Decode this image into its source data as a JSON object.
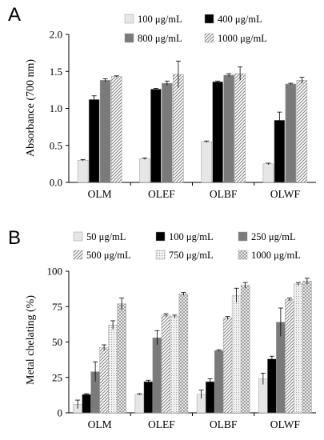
{
  "chart_data": [
    {
      "panel": "A",
      "type": "bar",
      "ylabel": "Absorbance (700 nm)",
      "categories": [
        "OLM",
        "OLEF",
        "OLBF",
        "OLWF"
      ],
      "ylim": [
        0,
        2.0
      ],
      "yticks": [
        "0.0",
        "0.5",
        "1.0",
        "1.5",
        "2.0"
      ],
      "legend_placement": "top",
      "series": [
        {
          "name": "100 μg/mL",
          "values": [
            0.3,
            0.32,
            0.55,
            0.25
          ],
          "errors": [
            0.01,
            0.01,
            0.01,
            0.01
          ],
          "fill": "solid",
          "color": "#e6e6e6"
        },
        {
          "name": "400 μg/mL",
          "values": [
            1.12,
            1.26,
            1.36,
            0.84
          ],
          "errors": [
            0.05,
            0.01,
            0.01,
            0.11
          ],
          "fill": "solid",
          "color": "#000000"
        },
        {
          "name": "800 μg/mL",
          "values": [
            1.38,
            1.34,
            1.45,
            1.33
          ],
          "errors": [
            0.02,
            0.03,
            0.02,
            0.01
          ],
          "fill": "solid",
          "color": "#7a7a7a"
        },
        {
          "name": "1000 μg/mL",
          "values": [
            1.43,
            1.46,
            1.47,
            1.38
          ],
          "errors": [
            0.01,
            0.18,
            0.09,
            0.04
          ],
          "fill": "diagonal",
          "color": "#bdbdbd"
        }
      ]
    },
    {
      "panel": "B",
      "type": "bar",
      "ylabel": "Metal chelating (%)",
      "categories": [
        "OLM",
        "OLEF",
        "OLBF",
        "OLWF"
      ],
      "ylim": [
        0,
        100
      ],
      "yticks": [
        "0",
        "25",
        "50",
        "75",
        "100"
      ],
      "legend_placement": "top",
      "series": [
        {
          "name": "50 μg/mL",
          "values": [
            6,
            13,
            13,
            24
          ],
          "errors": [
            3,
            0.5,
            3,
            4
          ],
          "fill": "solid",
          "color": "#e6e6e6"
        },
        {
          "name": "100 μg/mL",
          "values": [
            13,
            22,
            22,
            38
          ],
          "errors": [
            0.5,
            1,
            2,
            2
          ],
          "fill": "solid",
          "color": "#000000"
        },
        {
          "name": "250 μg/mL",
          "values": [
            29,
            53,
            44,
            64
          ],
          "errors": [
            7,
            5,
            0.5,
            10
          ],
          "fill": "solid",
          "color": "#7a7a7a"
        },
        {
          "name": "500 μg/mL",
          "values": [
            46,
            69,
            67,
            80
          ],
          "errors": [
            2,
            1,
            1,
            1
          ],
          "fill": "diagonal",
          "color": "#bdbdbd"
        },
        {
          "name": "750 μg/mL",
          "values": [
            62,
            68,
            83,
            91
          ],
          "errors": [
            3,
            1,
            5,
            1
          ],
          "fill": "dots",
          "color": "#eeeeee"
        },
        {
          "name": "1000 μg/mL",
          "values": [
            77,
            84,
            90,
            93
          ],
          "errors": [
            4,
            1,
            2,
            2
          ],
          "fill": "cross",
          "color": "#cfcfcf"
        }
      ]
    }
  ]
}
